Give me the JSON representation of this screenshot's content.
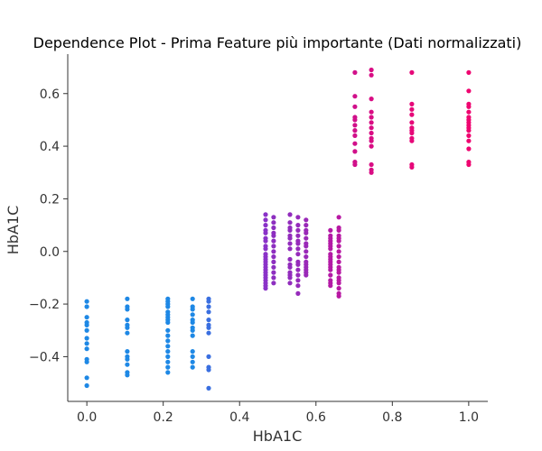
{
  "chart_data": {
    "type": "scatter",
    "title": "Dependence Plot - Prima Feature più importante (Dati normalizzati)",
    "xlabel": "HbA1C",
    "ylabel": "HbA1C",
    "xlim": [
      -0.05,
      1.05
    ],
    "ylim": [
      -0.57,
      0.75
    ],
    "grid": false,
    "legend": "none",
    "xticks": [
      {
        "value": 0.0,
        "label": "0.0"
      },
      {
        "value": 0.2,
        "label": "0.2"
      },
      {
        "value": 0.4,
        "label": "0.4"
      },
      {
        "value": 0.6,
        "label": "0.6"
      },
      {
        "value": 0.8,
        "label": "0.8"
      },
      {
        "value": 1.0,
        "label": "1.0"
      }
    ],
    "yticks": [
      {
        "value": -0.4,
        "label": "−0.4"
      },
      {
        "value": -0.2,
        "label": "−0.2"
      },
      {
        "value": 0.0,
        "label": "0.0"
      },
      {
        "value": 0.2,
        "label": "0.2"
      },
      {
        "value": 0.4,
        "label": "0.4"
      },
      {
        "value": 0.6,
        "label": "0.6"
      }
    ],
    "color_low": "#008bfb",
    "color_mid": "#8d2fc0",
    "color_high": "#ff0052",
    "columns": [
      {
        "x": 0.0,
        "color": "#1e88e5",
        "y": [
          -0.19,
          -0.21,
          -0.25,
          -0.27,
          -0.28,
          -0.3,
          -0.33,
          -0.35,
          -0.37,
          -0.41,
          -0.42,
          -0.48,
          -0.51
        ]
      },
      {
        "x": 0.106,
        "color": "#1e88e5",
        "y": [
          -0.18,
          -0.21,
          -0.22,
          -0.26,
          -0.28,
          -0.29,
          -0.31,
          -0.38,
          -0.4,
          -0.41,
          -0.43,
          -0.46,
          -0.47
        ]
      },
      {
        "x": 0.212,
        "color": "#1e88e5",
        "y": [
          -0.18,
          -0.19,
          -0.2,
          -0.21,
          -0.23,
          -0.24,
          -0.25,
          -0.26,
          -0.27,
          -0.3,
          -0.32,
          -0.34,
          -0.36,
          -0.38,
          -0.4,
          -0.42,
          -0.44,
          -0.46
        ]
      },
      {
        "x": 0.277,
        "color": "#1e88e5",
        "y": [
          -0.18,
          -0.21,
          -0.22,
          -0.24,
          -0.26,
          -0.27,
          -0.29,
          -0.3,
          -0.32,
          -0.38,
          -0.4,
          -0.42,
          -0.44
        ]
      },
      {
        "x": 0.319,
        "color": "#3a6fe0",
        "y": [
          -0.18,
          -0.19,
          -0.21,
          -0.23,
          -0.26,
          -0.28,
          -0.29,
          -0.31,
          -0.4,
          -0.44,
          -0.45,
          -0.52
        ]
      },
      {
        "x": 0.468,
        "color": "#8a32c8",
        "y": [
          0.14,
          0.12,
          0.1,
          0.08,
          0.07,
          0.05,
          0.04,
          0.02,
          0.01,
          -0.01,
          -0.02,
          -0.03,
          -0.04,
          -0.05,
          -0.06,
          -0.07,
          -0.08,
          -0.09,
          -0.1,
          -0.11,
          -0.12,
          -0.13,
          -0.14
        ]
      },
      {
        "x": 0.489,
        "color": "#8d2fc0",
        "y": [
          0.13,
          0.11,
          0.09,
          0.07,
          0.06,
          0.04,
          0.02,
          0.0,
          -0.02,
          -0.04,
          -0.06,
          -0.08,
          -0.1,
          -0.12
        ]
      },
      {
        "x": 0.532,
        "color": "#922cbd",
        "y": [
          0.14,
          0.11,
          0.09,
          0.08,
          0.06,
          0.05,
          0.03,
          0.01,
          -0.03,
          -0.05,
          -0.06,
          -0.08,
          -0.09,
          -0.1,
          -0.12
        ]
      },
      {
        "x": 0.553,
        "color": "#962bbb",
        "y": [
          0.13,
          0.1,
          0.08,
          0.06,
          0.04,
          0.03,
          0.01,
          -0.01,
          -0.04,
          -0.05,
          -0.07,
          -0.09,
          -0.11,
          -0.13,
          -0.16
        ]
      },
      {
        "x": 0.574,
        "color": "#9a29b8",
        "y": [
          0.12,
          0.1,
          0.08,
          0.07,
          0.05,
          0.03,
          0.02,
          0.0,
          -0.02,
          -0.04,
          -0.05,
          -0.06,
          -0.07,
          -0.08,
          -0.09
        ]
      },
      {
        "x": 0.638,
        "color": "#b41aa6",
        "y": [
          0.08,
          0.06,
          0.05,
          0.04,
          0.03,
          0.02,
          0.01,
          -0.01,
          -0.02,
          -0.03,
          -0.04,
          -0.05,
          -0.06,
          -0.07,
          -0.09,
          -0.11,
          -0.12,
          -0.13
        ]
      },
      {
        "x": 0.66,
        "color": "#b818a3",
        "y": [
          0.13,
          0.09,
          0.08,
          0.06,
          0.05,
          0.04,
          0.02,
          0.0,
          -0.02,
          -0.04,
          -0.06,
          -0.07,
          -0.08,
          -0.1,
          -0.11,
          -0.12,
          -0.14,
          -0.16,
          -0.17
        ]
      },
      {
        "x": 0.702,
        "color": "#d1108a",
        "y": [
          0.68,
          0.59,
          0.55,
          0.51,
          0.5,
          0.48,
          0.46,
          0.44,
          0.41,
          0.38,
          0.34,
          0.33
        ]
      },
      {
        "x": 0.745,
        "color": "#d90d84",
        "y": [
          0.69,
          0.67,
          0.58,
          0.53,
          0.51,
          0.49,
          0.47,
          0.45,
          0.43,
          0.42,
          0.4,
          0.33,
          0.31,
          0.3
        ]
      },
      {
        "x": 0.851,
        "color": "#e60879",
        "y": [
          0.68,
          0.56,
          0.54,
          0.52,
          0.49,
          0.47,
          0.46,
          0.45,
          0.43,
          0.42,
          0.33,
          0.32
        ]
      },
      {
        "x": 1.0,
        "color": "#ef0470",
        "y": [
          0.68,
          0.61,
          0.56,
          0.55,
          0.53,
          0.51,
          0.5,
          0.49,
          0.48,
          0.47,
          0.46,
          0.44,
          0.42,
          0.39,
          0.34,
          0.33
        ]
      }
    ]
  }
}
